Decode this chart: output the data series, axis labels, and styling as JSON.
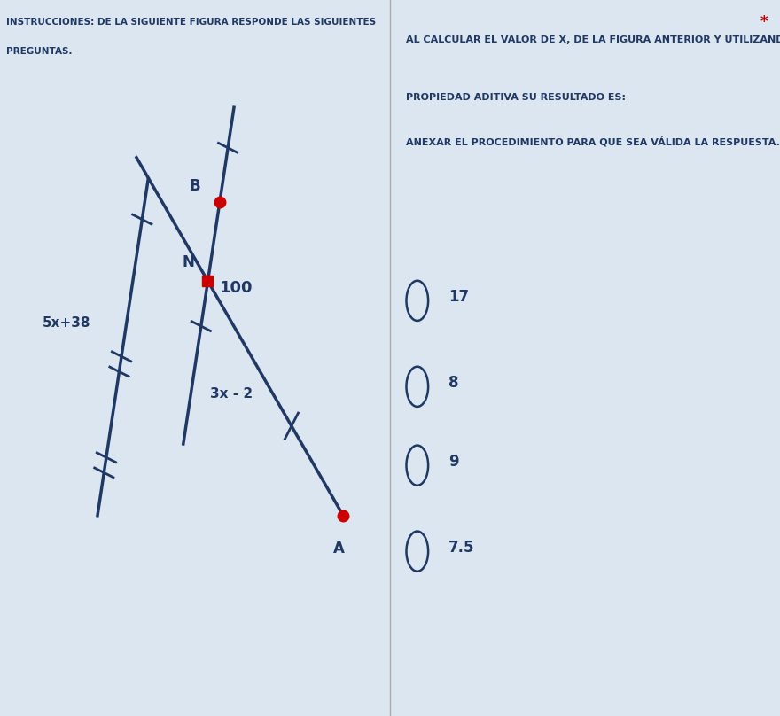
{
  "bg_color": "#dce6f0",
  "title_line1": "INSTRUCCIONES: DE LA SIGUIENTE FIGURA RESPONDE LAS SIGUIENTES",
  "title_line2": "PREGUNTAS.",
  "question_line1": "AL CALCULAR EL VALOR DE X, DE LA FIGURA ANTERIOR Y UTILIZANDO LA",
  "question_line2": "PROPIEDAD ADITIVA SU RESULTADO ES:",
  "question_line3": "ANEXAR EL PROCEDIMIENTO PARA QUE SEA VÁLIDA LA RESPUESTA.",
  "asterisk": "*",
  "label_5x38": "5x+38",
  "label_3x2": "3x - 2",
  "label_100": "100",
  "label_B": "B",
  "label_N": "N",
  "label_A": "A",
  "choices": [
    "17",
    "8",
    "9",
    "7.5"
  ],
  "text_color": "#1f3864",
  "line_color": "#1f3864",
  "dot_color": "#cc0000",
  "figure_bg": "#e8eef5",
  "divider_color": "#aaaaaa"
}
